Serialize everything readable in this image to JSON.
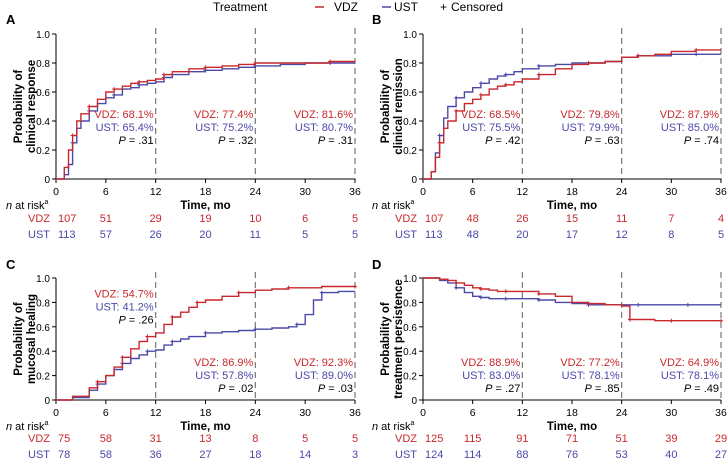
{
  "legend": {
    "title": "Treatment",
    "items": [
      {
        "name": "VDZ",
        "color": "#c8282d"
      },
      {
        "name": "UST",
        "color": "#4b49a8"
      },
      {
        "name": "Censored",
        "symbol": "+"
      }
    ]
  },
  "colors": {
    "vdz": "#c8282d",
    "ust": "#4b49a8",
    "axis": "#000000",
    "dash": "#777777"
  },
  "risk_label": "n at risk",
  "risk_superscript": "a",
  "chart_data": [
    {
      "panel": "A",
      "type": "line",
      "ylabel": [
        "Probability of",
        "clinical response"
      ],
      "xlabel": "Time, mo",
      "xlim": [
        0,
        36
      ],
      "ylim": [
        0,
        1
      ],
      "xticks": [
        0,
        6,
        12,
        18,
        24,
        30,
        36
      ],
      "yticks": [
        0,
        0.2,
        0.4,
        0.6,
        0.8,
        1.0
      ],
      "vlines": [
        12,
        24,
        36
      ],
      "series": [
        {
          "name": "VDZ",
          "x": [
            0,
            1,
            1.5,
            2,
            2.5,
            3,
            4,
            5,
            6,
            7,
            8,
            9,
            10,
            11,
            12,
            13,
            14,
            16,
            18,
            20,
            22,
            24,
            27,
            30,
            33,
            36
          ],
          "y": [
            0,
            0.08,
            0.2,
            0.3,
            0.4,
            0.45,
            0.5,
            0.55,
            0.6,
            0.62,
            0.64,
            0.66,
            0.67,
            0.68,
            0.69,
            0.72,
            0.74,
            0.76,
            0.77,
            0.78,
            0.79,
            0.8,
            0.8,
            0.8,
            0.81,
            0.81
          ]
        },
        {
          "name": "UST",
          "x": [
            0,
            1,
            1.5,
            2,
            2.5,
            3,
            4,
            5,
            6,
            7,
            8,
            9,
            10,
            11,
            12,
            13,
            14,
            16,
            18,
            20,
            22,
            24,
            27,
            30,
            33,
            36
          ],
          "y": [
            0,
            0.03,
            0.1,
            0.25,
            0.35,
            0.4,
            0.47,
            0.52,
            0.56,
            0.58,
            0.62,
            0.63,
            0.65,
            0.66,
            0.67,
            0.7,
            0.72,
            0.74,
            0.75,
            0.76,
            0.77,
            0.78,
            0.79,
            0.8,
            0.8,
            0.8
          ]
        }
      ],
      "annotations": [
        {
          "vdz": "VDZ: 68.1%",
          "ust": "UST: 65.4%",
          "p": ".31"
        },
        {
          "vdz": "VDZ: 77.4%",
          "ust": "UST: 75.2%",
          "p": ".32"
        },
        {
          "vdz": "VDZ: 81.6%",
          "ust": "UST: 80.7%",
          "p": ".31"
        }
      ],
      "risk": {
        "vdz": [
          "107",
          "51",
          "29",
          "19",
          "10",
          "6",
          "5"
        ],
        "ust": [
          "113",
          "57",
          "26",
          "20",
          "11",
          "5",
          "5"
        ]
      }
    },
    {
      "panel": "B",
      "type": "line",
      "ylabel": [
        "Probability of",
        "clinical remission"
      ],
      "xlabel": "Time, mo",
      "xlim": [
        0,
        36
      ],
      "ylim": [
        0,
        1
      ],
      "xticks": [
        0,
        6,
        12,
        18,
        24,
        30,
        36
      ],
      "yticks": [
        0,
        0.2,
        0.4,
        0.6,
        0.8,
        1.0
      ],
      "vlines": [
        12,
        24,
        36
      ],
      "series": [
        {
          "name": "VDZ",
          "x": [
            0,
            1,
            1.5,
            2,
            2.5,
            3,
            4,
            5,
            6,
            7,
            8,
            9,
            10,
            11,
            12,
            14,
            16,
            18,
            20,
            22,
            24,
            26,
            28,
            30,
            33,
            36
          ],
          "y": [
            0,
            0.05,
            0.15,
            0.25,
            0.35,
            0.4,
            0.47,
            0.52,
            0.55,
            0.58,
            0.62,
            0.64,
            0.65,
            0.67,
            0.69,
            0.72,
            0.76,
            0.79,
            0.8,
            0.81,
            0.84,
            0.85,
            0.86,
            0.88,
            0.89,
            0.89
          ]
        },
        {
          "name": "UST",
          "x": [
            0,
            1,
            1.5,
            2,
            2.5,
            3,
            4,
            5,
            6,
            7,
            8,
            9,
            10,
            11,
            12,
            14,
            16,
            18,
            20,
            22,
            24,
            26,
            28,
            30,
            33,
            36
          ],
          "y": [
            0,
            0.05,
            0.18,
            0.3,
            0.42,
            0.5,
            0.56,
            0.6,
            0.63,
            0.66,
            0.69,
            0.71,
            0.72,
            0.74,
            0.76,
            0.78,
            0.79,
            0.8,
            0.8,
            0.81,
            0.84,
            0.85,
            0.85,
            0.86,
            0.86,
            0.86
          ]
        }
      ],
      "annotations": [
        {
          "vdz": "VDZ: 68.5%",
          "ust": "UST: 75.5%",
          "p": ".42"
        },
        {
          "vdz": "VDZ: 79.8%",
          "ust": "UST: 79.9%",
          "p": ".63"
        },
        {
          "vdz": "VDZ: 87.9%",
          "ust": "UST: 85.0%",
          "p": ".74"
        }
      ],
      "risk": {
        "vdz": [
          "107",
          "48",
          "26",
          "15",
          "11",
          "7",
          "4"
        ],
        "ust": [
          "113",
          "48",
          "20",
          "17",
          "12",
          "8",
          "5"
        ]
      }
    },
    {
      "panel": "C",
      "type": "line",
      "ylabel": [
        "Probability of",
        "mucosal healing"
      ],
      "xlabel": "Time, mo",
      "xlim": [
        0,
        36
      ],
      "ylim": [
        0,
        1
      ],
      "xticks": [
        0,
        6,
        12,
        18,
        24,
        30,
        36
      ],
      "yticks": [
        0,
        0.2,
        0.4,
        0.6,
        0.8,
        1.0
      ],
      "vlines": [
        12,
        24,
        36
      ],
      "series": [
        {
          "name": "VDZ",
          "x": [
            0,
            2,
            4,
            5,
            6,
            7,
            8,
            9,
            10,
            11,
            12,
            13,
            14,
            15,
            16,
            17,
            18,
            20,
            22,
            24,
            26,
            28,
            30,
            32,
            36
          ],
          "y": [
            0,
            0.03,
            0.1,
            0.15,
            0.2,
            0.27,
            0.35,
            0.42,
            0.48,
            0.52,
            0.55,
            0.62,
            0.68,
            0.72,
            0.76,
            0.8,
            0.82,
            0.85,
            0.88,
            0.9,
            0.91,
            0.92,
            0.92,
            0.93,
            0.93
          ]
        },
        {
          "name": "UST",
          "x": [
            0,
            2,
            4,
            5,
            6,
            7,
            8,
            9,
            10,
            11,
            12,
            13,
            14,
            15,
            16,
            18,
            20,
            22,
            24,
            26,
            28,
            29,
            30,
            31,
            32,
            34,
            36
          ],
          "y": [
            0,
            0.02,
            0.08,
            0.13,
            0.2,
            0.25,
            0.3,
            0.34,
            0.37,
            0.4,
            0.41,
            0.45,
            0.48,
            0.5,
            0.52,
            0.55,
            0.56,
            0.57,
            0.58,
            0.59,
            0.6,
            0.62,
            0.7,
            0.82,
            0.88,
            0.89,
            0.89
          ]
        }
      ],
      "annotations": [
        {
          "vdz": "VDZ: 54.7%",
          "ust": "UST: 41.2%",
          "p": ".26"
        },
        {
          "vdz": "VDZ: 86.9%",
          "ust": "UST: 57.8%",
          "p": ".02"
        },
        {
          "vdz": "VDZ: 92.3%",
          "ust": "UST: 89.0%",
          "p": ".03"
        }
      ],
      "risk": {
        "vdz": [
          "75",
          "58",
          "31",
          "13",
          "8",
          "5",
          "5"
        ],
        "ust": [
          "78",
          "58",
          "36",
          "27",
          "18",
          "14",
          "3"
        ]
      }
    },
    {
      "panel": "D",
      "type": "line",
      "ylabel": [
        "Probability of",
        "treatment persistence"
      ],
      "xlabel": "Time, mo",
      "xlim": [
        0,
        36
      ],
      "ylim": [
        0,
        1
      ],
      "xticks": [
        0,
        6,
        12,
        18,
        24,
        30,
        36
      ],
      "yticks": [
        0,
        0.2,
        0.4,
        0.6,
        0.8,
        1.0
      ],
      "vlines": [
        12,
        24,
        36
      ],
      "series": [
        {
          "name": "VDZ",
          "x": [
            0,
            2,
            3,
            4,
            5,
            6,
            7,
            8,
            9,
            10,
            11,
            12,
            14,
            16,
            18,
            20,
            22,
            24,
            25,
            26,
            28,
            30,
            32,
            34,
            36
          ],
          "y": [
            1,
            0.99,
            0.98,
            0.96,
            0.94,
            0.92,
            0.91,
            0.9,
            0.89,
            0.89,
            0.89,
            0.89,
            0.87,
            0.85,
            0.8,
            0.79,
            0.78,
            0.77,
            0.66,
            0.66,
            0.65,
            0.65,
            0.65,
            0.65,
            0.65
          ]
        },
        {
          "name": "UST",
          "x": [
            0,
            2,
            3,
            4,
            5,
            6,
            7,
            8,
            9,
            10,
            11,
            12,
            14,
            16,
            18,
            20,
            22,
            24,
            26,
            28,
            30,
            32,
            34,
            36
          ],
          "y": [
            1,
            0.98,
            0.96,
            0.92,
            0.88,
            0.85,
            0.84,
            0.83,
            0.83,
            0.83,
            0.83,
            0.83,
            0.82,
            0.8,
            0.79,
            0.78,
            0.78,
            0.78,
            0.78,
            0.78,
            0.78,
            0.78,
            0.78,
            0.78
          ]
        }
      ],
      "annotations": [
        {
          "vdz": "VDZ: 88.9%",
          "ust": "UST: 83.0%",
          "p": ".27"
        },
        {
          "vdz": "VDZ: 77.2%",
          "ust": "UST: 78.1%",
          "p": ".85"
        },
        {
          "vdz": "VDZ: 64.9%",
          "ust": "UST: 78.1%",
          "p": ".49"
        }
      ],
      "risk": {
        "vdz": [
          "125",
          "115",
          "91",
          "71",
          "51",
          "39",
          "29"
        ],
        "ust": [
          "124",
          "114",
          "88",
          "76",
          "53",
          "40",
          "27"
        ]
      }
    }
  ]
}
